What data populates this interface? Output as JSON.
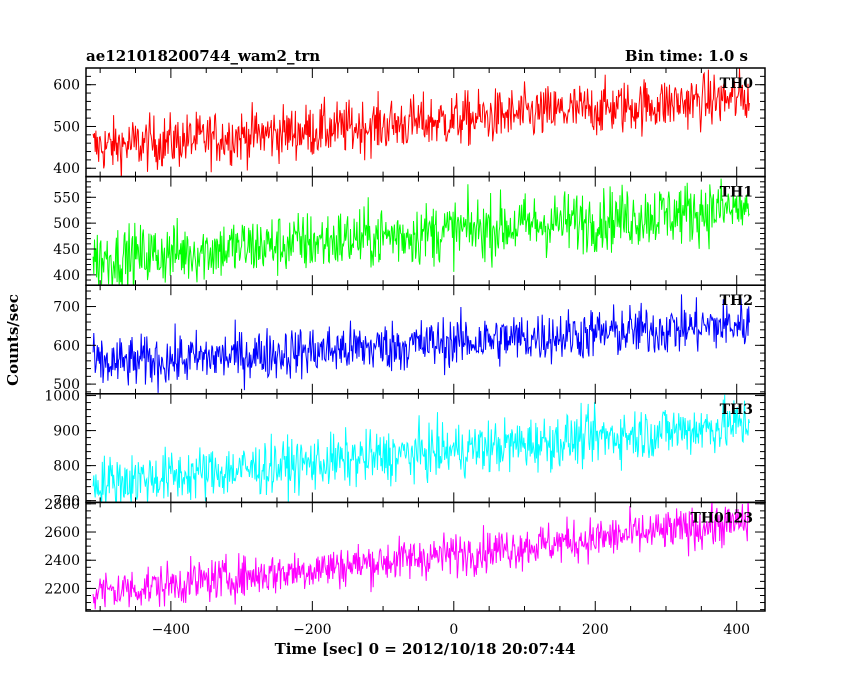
{
  "chart_data": {
    "type": "line",
    "title_left": "ae121018200744_wam2_trn",
    "title_right": "Bin time: 1.0 s",
    "xlabel": "Time [sec] 0 = 2012/10/18 20:07:44",
    "ylabel": "Counts/sec",
    "xlim": [
      -520,
      440
    ],
    "x_ticks": [
      -400,
      -200,
      0,
      200,
      400
    ],
    "x_range": [
      -510,
      418
    ],
    "bin_time": 1.0,
    "grid": false,
    "panels": [
      {
        "name": "TH0",
        "color": "#ff0000",
        "ylim": [
          380,
          640
        ],
        "y_ticks": [
          400,
          500,
          600
        ],
        "y_minor_step": 20,
        "trend_start": 450,
        "trend_end": 570,
        "noise": 32
      },
      {
        "name": "TH1",
        "color": "#00ff00",
        "ylim": [
          380,
          590
        ],
        "y_ticks": [
          400,
          450,
          500,
          550
        ],
        "y_minor_step": 10,
        "trend_start": 430,
        "trend_end": 530,
        "noise": 30
      },
      {
        "name": "TH2",
        "color": "#0000ff",
        "ylim": [
          475,
          755
        ],
        "y_ticks": [
          500,
          600,
          700
        ],
        "y_minor_step": 20,
        "trend_start": 550,
        "trend_end": 655,
        "noise": 33
      },
      {
        "name": "TH3",
        "color": "#00ffff",
        "ylim": [
          695,
          1005
        ],
        "y_ticks": [
          700,
          800,
          900,
          1000
        ],
        "y_minor_step": 20,
        "trend_start": 750,
        "trend_end": 920,
        "noise": 38
      },
      {
        "name": "TH0123",
        "color": "#ff00ff",
        "ylim": [
          2040,
          2810
        ],
        "y_ticks": [
          2200,
          2400,
          2600,
          2800
        ],
        "y_minor_step": 50,
        "trend_start": 2170,
        "trend_end": 2670,
        "noise": 75
      }
    ]
  }
}
